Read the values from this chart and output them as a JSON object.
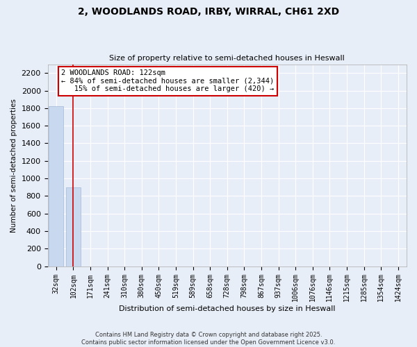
{
  "title_line1": "2, WOODLANDS ROAD, IRBY, WIRRAL, CH61 2XD",
  "title_line2": "Size of property relative to semi-detached houses in Heswall",
  "xlabel": "Distribution of semi-detached houses by size in Heswall",
  "ylabel": "Number of semi-detached properties",
  "categories": [
    "32sqm",
    "102sqm",
    "171sqm",
    "241sqm",
    "310sqm",
    "380sqm",
    "450sqm",
    "519sqm",
    "589sqm",
    "658sqm",
    "728sqm",
    "798sqm",
    "867sqm",
    "937sqm",
    "1006sqm",
    "1076sqm",
    "1146sqm",
    "1215sqm",
    "1285sqm",
    "1354sqm",
    "1424sqm"
  ],
  "values": [
    1820,
    900,
    0,
    0,
    0,
    0,
    0,
    0,
    0,
    0,
    0,
    0,
    0,
    0,
    0,
    0,
    0,
    0,
    0,
    0,
    0
  ],
  "property_bin_index": 1,
  "bar_color": "#c8d8ee",
  "bar_edge_color": "#aac0dc",
  "highlight_line_color": "#cc0000",
  "annotation_line1": "2 WOODLANDS ROAD: 122sqm",
  "annotation_line2": "← 84% of semi-detached houses are smaller (2,344)",
  "annotation_line3": "   15% of semi-detached houses are larger (420) →",
  "annotation_box_color": "white",
  "annotation_box_edge_color": "#cc0000",
  "ylim": [
    0,
    2300
  ],
  "yticks": [
    0,
    200,
    400,
    600,
    800,
    1000,
    1200,
    1400,
    1600,
    1800,
    2000,
    2200
  ],
  "background_color": "#e8eef8",
  "grid_color": "white",
  "footer_text": "Contains HM Land Registry data © Crown copyright and database right 2025.\nContains public sector information licensed under the Open Government Licence v3.0."
}
